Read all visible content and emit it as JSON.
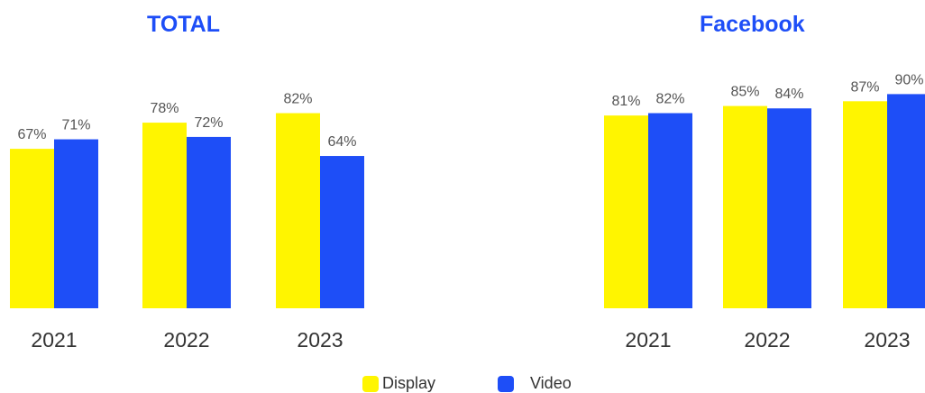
{
  "colors": {
    "display": "#fff500",
    "video": "#1e4ef7",
    "title": "#1e4ef7",
    "label": "#555555",
    "axis_label": "#333333"
  },
  "legend": {
    "display_label": "Display",
    "video_label": "Video"
  },
  "chart_data": [
    {
      "type": "bar",
      "title": "TOTAL",
      "categories": [
        "2021",
        "2022",
        "2023"
      ],
      "series": [
        {
          "name": "Display",
          "values": [
            67,
            78,
            82
          ]
        },
        {
          "name": "Video",
          "values": [
            71,
            72,
            64
          ]
        }
      ],
      "value_suffix": "%",
      "ylim": [
        0,
        100
      ],
      "grid": false,
      "legend_position": "bottom"
    },
    {
      "type": "bar",
      "title": "Facebook",
      "categories": [
        "2021",
        "2022",
        "2023"
      ],
      "series": [
        {
          "name": "Display",
          "values": [
            81,
            85,
            87
          ]
        },
        {
          "name": "Video",
          "values": [
            82,
            84,
            90
          ]
        }
      ],
      "value_suffix": "%",
      "ylim": [
        0,
        100
      ],
      "grid": false,
      "legend_position": "bottom"
    }
  ]
}
